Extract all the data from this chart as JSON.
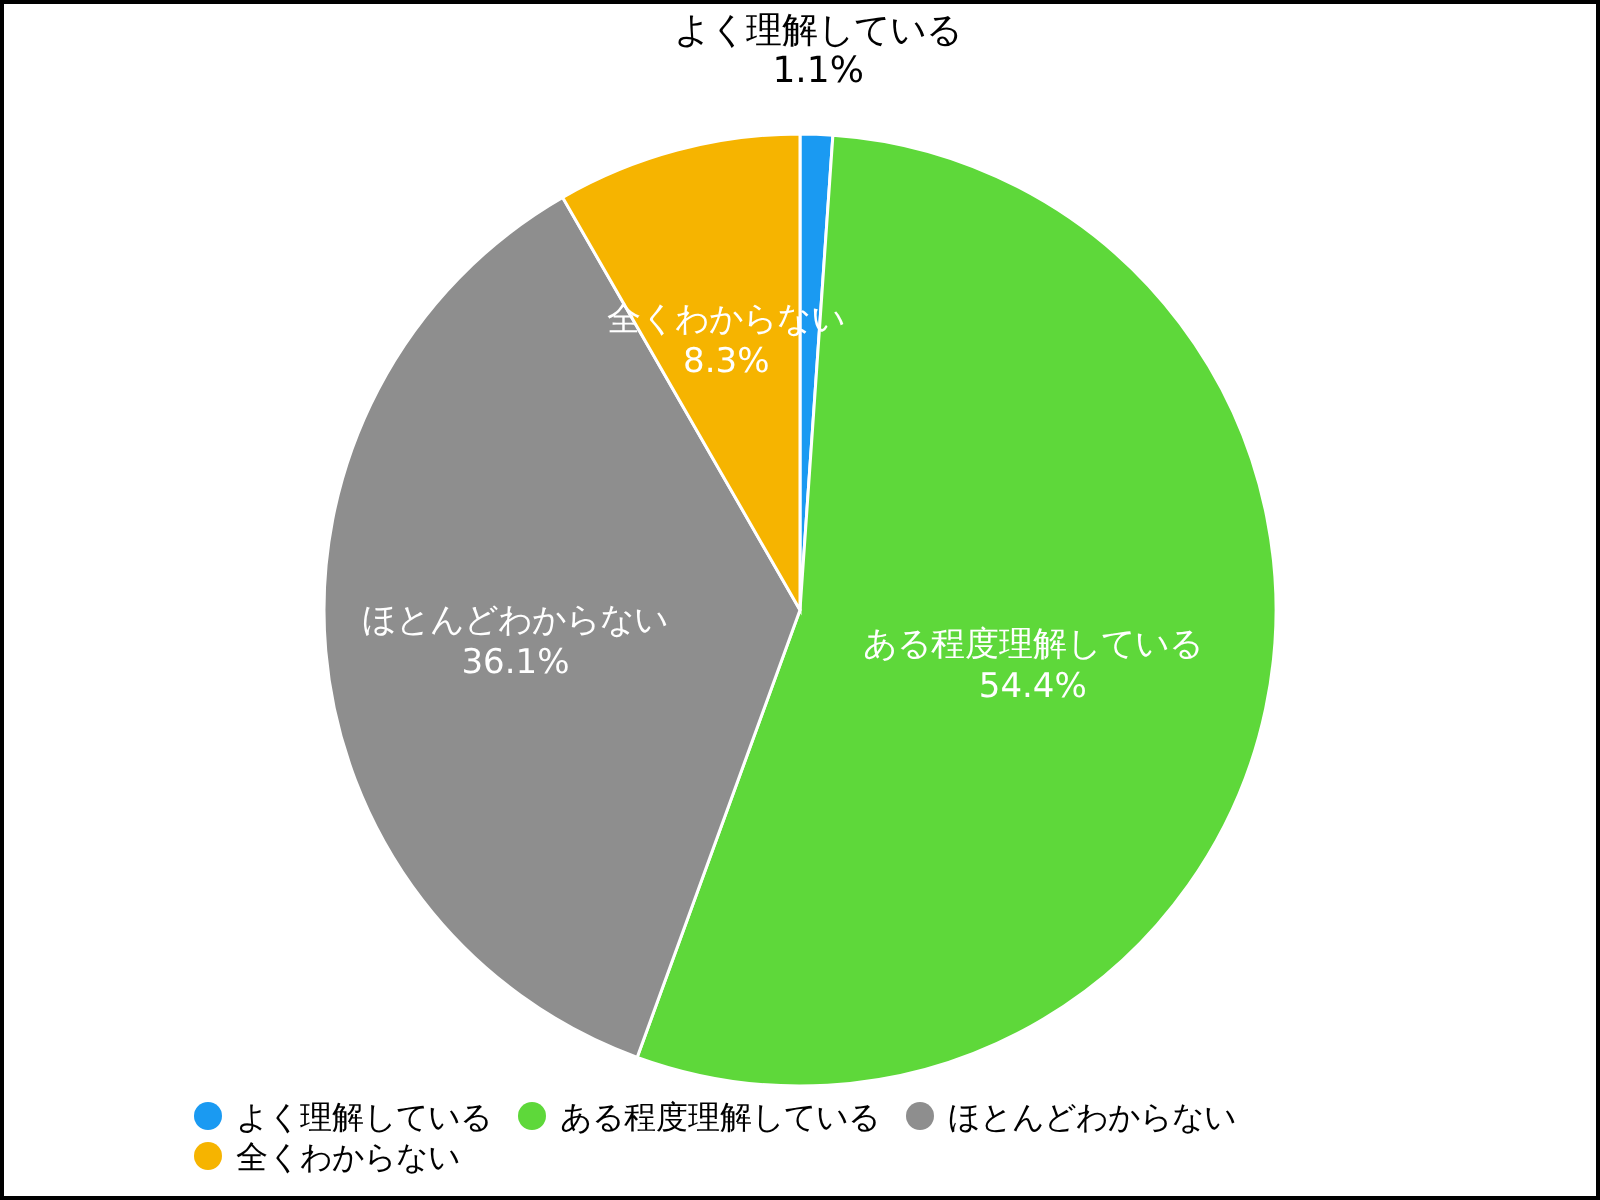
{
  "chart_data": {
    "type": "pie",
    "categories": [
      "よく理解している",
      "ある程度理解している",
      "ほとんどわからない",
      "全くわからない"
    ],
    "values": [
      1.1,
      54.4,
      36.1,
      8.3
    ],
    "colors": [
      "#1a9af2",
      "#5ed83a",
      "#8e8e8e",
      "#f6b400"
    ],
    "value_labels": [
      "1.1%",
      "54.4%",
      "36.1%",
      "8.3%"
    ],
    "legend": "bottom"
  }
}
